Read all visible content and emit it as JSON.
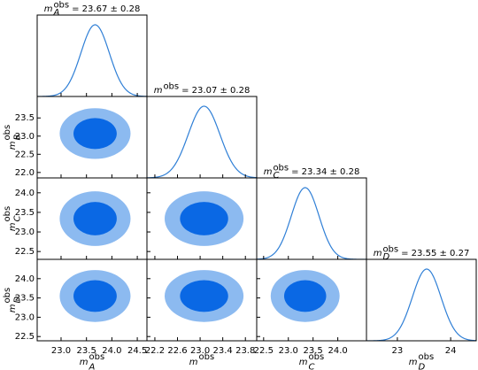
{
  "chart_data": {
    "type": "corner",
    "line_color": "#2f7fd6",
    "inner_color": "#0a68e4",
    "outer_color": "#8cbaf0",
    "variables": [
      {
        "label": {
          "base": "m",
          "sup": "obs",
          "sub": "A"
        },
        "mean": 23.67,
        "sigma": 0.28,
        "stat_label": "= 23.67 ± 0.28",
        "lim": [
          22.53,
          24.69
        ],
        "ticks": [
          {
            "value": 23.0,
            "label": "23.0"
          },
          {
            "value": 23.5,
            "label": "23.5"
          },
          {
            "value": 24.0,
            "label": "24.0"
          },
          {
            "value": 24.5,
            "label": "24.5"
          }
        ]
      },
      {
        "label": {
          "base": "m",
          "sup": "obs"
        },
        "axis_label": {
          "base": "m",
          "sup": "obs",
          "sub": "B"
        },
        "mean": 23.07,
        "sigma": 0.28,
        "stat_label": "= 23.07 ± 0.28",
        "lim": [
          22.06,
          24.0
        ],
        "ylim": [
          21.85,
          24.09
        ],
        "ticks": [
          22.2,
          22.6,
          {
            "value": 23.0,
            "label": "23.0"
          },
          23.4,
          23.8
        ],
        "yticks": [
          {
            "value": 22.0,
            "label": "22.0"
          },
          22.5,
          {
            "value": 23.0,
            "label": "23.0"
          },
          23.5
        ]
      },
      {
        "label": {
          "base": "m",
          "sup": "obs",
          "sub": "C"
        },
        "mean": 23.34,
        "sigma": 0.28,
        "stat_label": "= 23.34 ± 0.28",
        "lim": [
          22.36,
          24.58
        ],
        "ylim": [
          22.3,
          24.38
        ],
        "ticks": [
          22.5,
          {
            "value": 23.0,
            "label": "23.0"
          },
          23.5,
          {
            "value": 24.0,
            "label": "24.0"
          }
        ],
        "yticks": [
          22.5,
          {
            "value": 23.0,
            "label": "23.0"
          },
          23.5,
          {
            "value": 24.0,
            "label": "24.0"
          }
        ]
      },
      {
        "label": {
          "base": "m",
          "sup": "obs",
          "sub": "D"
        },
        "mean": 23.55,
        "sigma": 0.27,
        "stat_label": "= 23.55 ± 0.27",
        "lim": [
          22.42,
          24.48
        ],
        "ylim": [
          22.39,
          24.5
        ],
        "ticks": [
          23,
          24
        ],
        "yticks": [
          22.5,
          {
            "value": 23.0,
            "label": "23.0"
          },
          23.5,
          {
            "value": 24.0,
            "label": "24.0"
          }
        ]
      }
    ]
  }
}
